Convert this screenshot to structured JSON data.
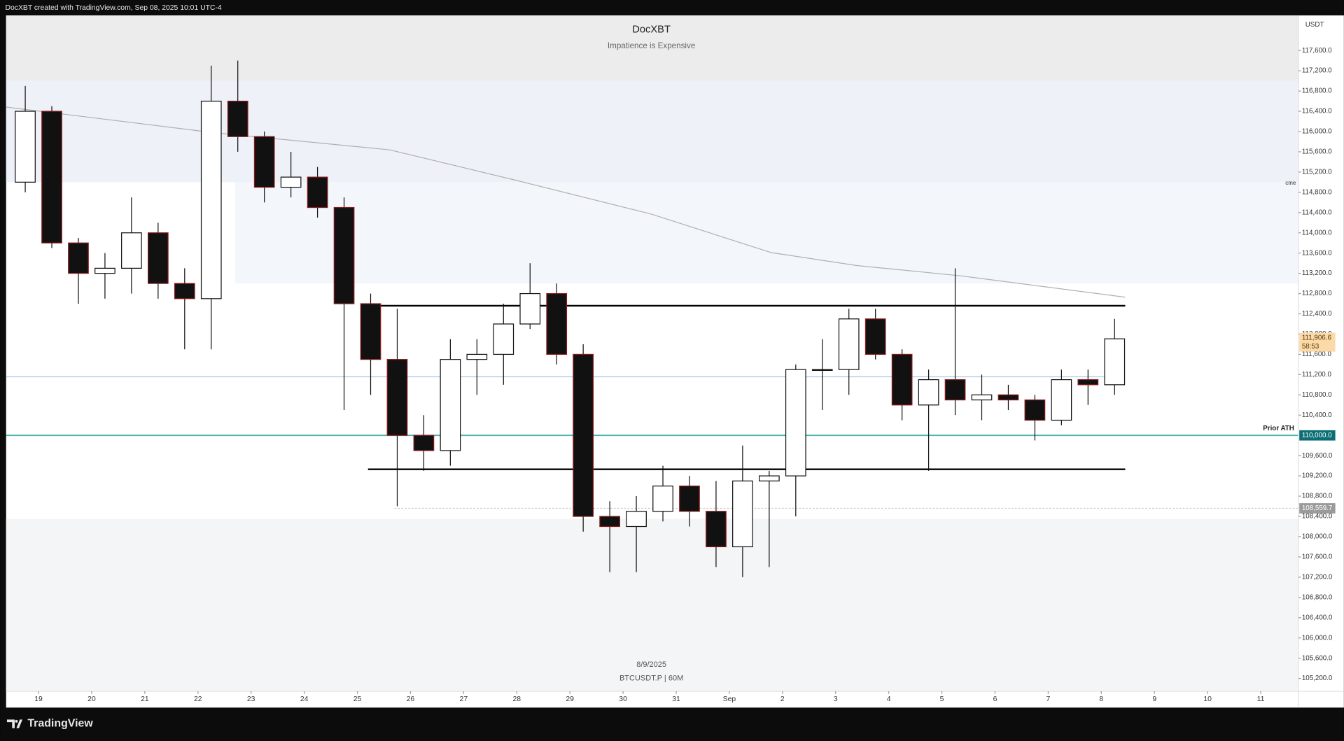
{
  "header": {
    "credit": "DocXBT created with TradingView.com, Sep 08, 2025 10:01 UTC-4"
  },
  "footer": {
    "brand": "TradingView"
  },
  "chart_data": {
    "type": "candlestick",
    "title": "DocXBT",
    "subtitle": "Impatience is Expensive",
    "date_label": "8/9/2025",
    "symbol_label": "BTCUSDT.P | 60M",
    "currency": "USDT",
    "marker": "cme",
    "x": [
      18.5,
      19,
      19.5,
      20,
      20.5,
      21,
      21.5,
      22,
      22.5,
      23,
      23.5,
      24,
      24.5,
      25,
      25.5,
      26,
      26.5,
      27,
      27.5,
      28,
      28.5,
      29,
      29.5,
      30,
      30.5,
      31,
      31.5,
      32,
      32.5,
      33,
      33.5,
      34,
      34.5,
      35,
      35.5,
      36,
      36.5,
      37,
      37.5,
      38,
      38.5,
      39
    ],
    "open": [
      115000,
      116400,
      113800,
      113200,
      113300,
      114000,
      113000,
      112700,
      116600,
      115900,
      114900,
      115100,
      114500,
      112600,
      111500,
      110000,
      109700,
      111500,
      111600,
      112200,
      112800,
      111600,
      108400,
      108200,
      108500,
      109000,
      108500,
      107800,
      109100,
      109200,
      111300,
      111300,
      112300,
      111600,
      110600,
      111100,
      110700,
      110800,
      110700,
      110300,
      111100,
      111000
    ],
    "high": [
      116900,
      116500,
      113900,
      113600,
      114700,
      114200,
      113300,
      117300,
      117400,
      116000,
      115600,
      115300,
      114700,
      112800,
      112500,
      110400,
      111900,
      111900,
      112600,
      113400,
      113000,
      111800,
      108700,
      108800,
      109400,
      109200,
      109100,
      109800,
      109300,
      111400,
      111900,
      112500,
      112500,
      111700,
      111300,
      113300,
      111200,
      111000,
      110800,
      111300,
      111300,
      112300
    ],
    "low": [
      114800,
      113700,
      112600,
      112700,
      112800,
      112700,
      111700,
      111700,
      115600,
      114600,
      114700,
      114300,
      110500,
      110800,
      108600,
      109300,
      109400,
      110800,
      111000,
      112100,
      111400,
      108100,
      107300,
      107300,
      108300,
      108200,
      107400,
      107200,
      107400,
      108400,
      110500,
      110800,
      111500,
      110300,
      109300,
      110400,
      110300,
      110500,
      109900,
      110200,
      110600,
      110800
    ],
    "close": [
      116400,
      113800,
      113200,
      113300,
      114000,
      113000,
      112700,
      116600,
      115900,
      114900,
      115100,
      114500,
      112600,
      111500,
      110000,
      109700,
      111500,
      111600,
      112200,
      112800,
      111600,
      108400,
      108200,
      108500,
      109000,
      108500,
      107800,
      109100,
      109200,
      111300,
      111300,
      112300,
      111600,
      110600,
      111100,
      110700,
      110800,
      110700,
      110300,
      111100,
      111000,
      111906.6
    ],
    "candle_span": 0.5,
    "ma": {
      "color": "#b0b0b0",
      "x": [
        18.39,
        22.31,
        25.61,
        27.95,
        30.53,
        32.79,
        34.4,
        36.35,
        39.45
      ],
      "values": [
        116484,
        115976,
        115638,
        115046,
        114370,
        113609,
        113354,
        113151,
        112729
      ]
    },
    "zones": [
      {
        "from": 117000,
        "to": 118293,
        "x": [
          18.39,
          42.71
        ],
        "color": "#ececec"
      },
      {
        "from": 115000,
        "to": 117000,
        "x": [
          18.39,
          42.71
        ],
        "color": "#eef1f7"
      },
      {
        "from": 113000,
        "to": 115000,
        "x": [
          22.7,
          42.71
        ],
        "color": "#f3f6fb"
      },
      {
        "from": 104946,
        "to": 108350,
        "x": [
          18.39,
          42.71
        ],
        "color": "#f4f5f7"
      }
    ],
    "levels": [
      {
        "value": 112560,
        "color": "#000000",
        "x": [
          25.3,
          39.45
        ],
        "width": 2
      },
      {
        "value": 109330,
        "color": "#000000",
        "x": [
          25.2,
          39.45
        ],
        "width": 2
      },
      {
        "value": 111156,
        "color": "#9cc3ec",
        "x": [
          18.39,
          39.45
        ],
        "width": 1
      },
      {
        "value": 110000,
        "color": "#4bb3b3",
        "x": [
          18.39,
          42.71
        ],
        "width": 1.5,
        "name": "Prior ATH",
        "axis_label": "110,000.0",
        "label_color": "#0b6e74"
      },
      {
        "value": 108559.7,
        "color": "#c8c8c8",
        "x": [
          25.7,
          42.71
        ],
        "width": 1,
        "dash": true,
        "axis_label": "108,559.7",
        "label_color": "#9a9a9a"
      }
    ],
    "last": {
      "value": 111906.6,
      "label": "111,906.6",
      "countdown": "58:53"
    },
    "xlim": [
      18.39,
      42.71
    ],
    "xticks": [
      19,
      20,
      21,
      22,
      23,
      24,
      25,
      26,
      27,
      28,
      29,
      30,
      31,
      {
        "value": 32,
        "label": "Sep"
      },
      {
        "value": 33,
        "label": "2"
      },
      {
        "value": 34,
        "label": "3"
      },
      {
        "value": 35,
        "label": "4"
      },
      {
        "value": 36,
        "label": "5"
      },
      {
        "value": 37,
        "label": "6"
      },
      {
        "value": 38,
        "label": "7"
      },
      {
        "value": 39,
        "label": "8"
      },
      {
        "value": 40,
        "label": "9"
      },
      {
        "value": 41,
        "label": "10"
      },
      {
        "value": 42,
        "label": "11"
      }
    ],
    "ylim": [
      104946,
      118293
    ],
    "yticks": [
      {
        "value": 105200,
        "label": "105,200.0"
      },
      {
        "value": 105600,
        "label": "105,600.0"
      },
      {
        "value": 106000,
        "label": "106,000.0"
      },
      {
        "value": 106400,
        "label": "106,400.0"
      },
      {
        "value": 106800,
        "label": "106,800.0"
      },
      {
        "value": 107200,
        "label": "107,200.0"
      },
      {
        "value": 107600,
        "label": "107,600.0"
      },
      {
        "value": 108000,
        "label": "108,000.0"
      },
      {
        "value": 108400,
        "label": "108,400.0"
      },
      {
        "value": 108800,
        "label": "108,800.0"
      },
      {
        "value": 109200,
        "label": "109,200.0"
      },
      {
        "value": 109600,
        "label": "109,600.0"
      },
      {
        "value": 110400,
        "label": "110,400.0"
      },
      {
        "value": 110800,
        "label": "110,800.0"
      },
      {
        "value": 111200,
        "label": "111,200.0"
      },
      {
        "value": 111600,
        "label": "111,600.0"
      },
      {
        "value": 112000,
        "label": "112,000.0"
      },
      {
        "value": 112400,
        "label": "112,400.0"
      },
      {
        "value": 112800,
        "label": "112,800.0"
      },
      {
        "value": 113200,
        "label": "113,200.0"
      },
      {
        "value": 113600,
        "label": "113,600.0"
      },
      {
        "value": 114000,
        "label": "114,000.0"
      },
      {
        "value": 114400,
        "label": "114,400.0"
      },
      {
        "value": 114800,
        "label": "114,800.0"
      },
      {
        "value": 115200,
        "label": "115,200.0"
      },
      {
        "value": 115600,
        "label": "115,600.0"
      },
      {
        "value": 116000,
        "label": "116,000.0"
      },
      {
        "value": 116400,
        "label": "116,400.0"
      },
      {
        "value": 116800,
        "label": "116,800.0"
      },
      {
        "value": 117200,
        "label": "117,200.0"
      },
      {
        "value": 117600,
        "label": "117,600.0"
      }
    ]
  }
}
